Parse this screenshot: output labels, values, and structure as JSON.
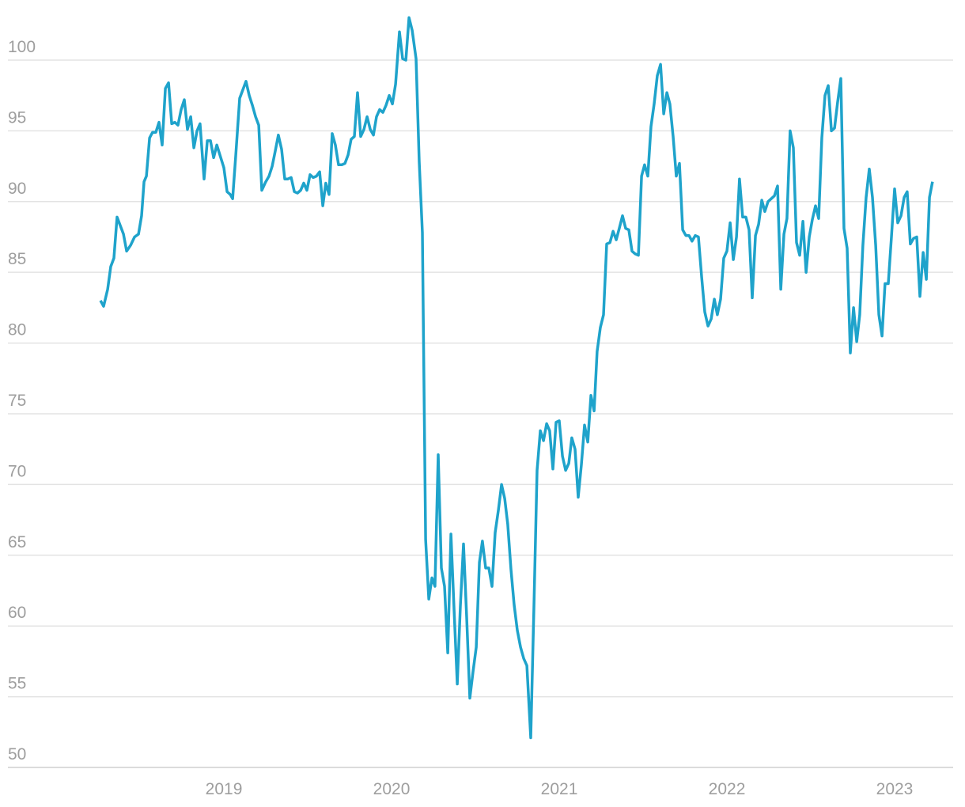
{
  "chart_data": {
    "type": "line",
    "x": [
      2018.264,
      2018.283,
      2018.307,
      2018.325,
      2018.344,
      2018.363,
      2018.401,
      2018.42,
      2018.443,
      2018.467,
      2018.491,
      2018.509,
      2018.524,
      2018.538,
      2018.557,
      2018.575,
      2018.594,
      2018.613,
      2018.632,
      2018.651,
      2018.67,
      2018.689,
      2018.708,
      2018.726,
      2018.745,
      2018.764,
      2018.783,
      2018.802,
      2018.821,
      2018.84,
      2018.858,
      2018.882,
      2018.901,
      2018.92,
      2018.939,
      2018.958,
      2018.976,
      2019.0,
      2019.019,
      2019.038,
      2019.052,
      2019.071,
      2019.094,
      2019.113,
      2019.132,
      2019.151,
      2019.17,
      2019.189,
      2019.208,
      2019.226,
      2019.25,
      2019.269,
      2019.288,
      2019.307,
      2019.325,
      2019.344,
      2019.363,
      2019.382,
      2019.401,
      2019.42,
      2019.439,
      2019.458,
      2019.476,
      2019.495,
      2019.514,
      2019.533,
      2019.552,
      2019.571,
      2019.59,
      2019.608,
      2019.627,
      2019.646,
      2019.665,
      2019.684,
      2019.703,
      2019.722,
      2019.741,
      2019.759,
      2019.778,
      2019.797,
      2019.816,
      2019.835,
      2019.854,
      2019.873,
      2019.892,
      2019.91,
      2019.929,
      2019.948,
      2019.967,
      2019.986,
      2020.005,
      2020.024,
      2020.047,
      2020.066,
      2020.085,
      2020.104,
      2020.123,
      2020.146,
      2020.165,
      2020.184,
      2020.203,
      2020.222,
      2020.241,
      2020.259,
      2020.278,
      2020.297,
      2020.316,
      2020.335,
      2020.354,
      2020.373,
      2020.392,
      2020.41,
      2020.429,
      2020.448,
      2020.467,
      2020.486,
      2020.505,
      2020.524,
      2020.542,
      2020.561,
      2020.58,
      2020.599,
      2020.618,
      2020.637,
      2020.656,
      2020.675,
      2020.693,
      2020.712,
      2020.731,
      2020.75,
      2020.769,
      2020.788,
      2020.807,
      2020.83,
      2020.849,
      2020.868,
      2020.887,
      2020.906,
      2020.925,
      2020.943,
      2020.962,
      2020.981,
      2021.0,
      2021.019,
      2021.038,
      2021.057,
      2021.075,
      2021.094,
      2021.113,
      2021.132,
      2021.151,
      2021.17,
      2021.189,
      2021.208,
      2021.226,
      2021.245,
      2021.264,
      2021.283,
      2021.302,
      2021.321,
      2021.34,
      2021.358,
      2021.377,
      2021.396,
      2021.415,
      2021.434,
      2021.453,
      2021.472,
      2021.491,
      2021.509,
      2021.528,
      2021.547,
      2021.566,
      2021.585,
      2021.604,
      2021.623,
      2021.642,
      2021.66,
      2021.679,
      2021.698,
      2021.717,
      2021.736,
      2021.755,
      2021.774,
      2021.792,
      2021.811,
      2021.83,
      2021.849,
      2021.868,
      2021.887,
      2021.906,
      2021.925,
      2021.943,
      2021.962,
      2021.981,
      2022.0,
      2022.019,
      2022.038,
      2022.057,
      2022.075,
      2022.094,
      2022.113,
      2022.132,
      2022.151,
      2022.17,
      2022.189,
      2022.208,
      2022.226,
      2022.245,
      2022.264,
      2022.283,
      2022.302,
      2022.321,
      2022.34,
      2022.358,
      2022.377,
      2022.396,
      2022.415,
      2022.434,
      2022.453,
      2022.472,
      2022.491,
      2022.509,
      2022.528,
      2022.547,
      2022.566,
      2022.585,
      2022.604,
      2022.623,
      2022.642,
      2022.66,
      2022.679,
      2022.698,
      2022.717,
      2022.736,
      2022.755,
      2022.774,
      2022.792,
      2022.811,
      2022.83,
      2022.849,
      2022.868,
      2022.887,
      2022.906,
      2022.925,
      2022.943,
      2022.962,
      2022.981,
      2023.0,
      2023.019,
      2023.038,
      2023.057,
      2023.075,
      2023.094,
      2023.113,
      2023.132,
      2023.151,
      2023.17,
      2023.189,
      2023.208,
      2023.226
    ],
    "series": [
      {
        "color": "#1fa3cb",
        "values": [
          83.0,
          82.6,
          83.8,
          85.4,
          86.0,
          88.9,
          87.7,
          86.5,
          86.9,
          87.5,
          87.7,
          89.0,
          91.4,
          91.8,
          94.5,
          94.9,
          94.9,
          95.6,
          94.0,
          98.0,
          98.4,
          95.5,
          95.6,
          95.4,
          96.5,
          97.2,
          95.1,
          96.0,
          93.8,
          95.0,
          95.5,
          91.6,
          94.3,
          94.3,
          93.1,
          94.0,
          93.3,
          92.4,
          90.7,
          90.5,
          90.2,
          93.3,
          97.3,
          97.9,
          98.5,
          97.5,
          96.8,
          96.0,
          95.4,
          90.8,
          91.4,
          91.8,
          92.5,
          93.6,
          94.7,
          93.7,
          91.6,
          91.6,
          91.7,
          90.7,
          90.6,
          90.8,
          91.3,
          90.8,
          91.9,
          91.7,
          91.8,
          92.1,
          89.7,
          91.3,
          90.5,
          94.8,
          94.0,
          92.6,
          92.6,
          92.7,
          93.3,
          94.4,
          94.6,
          97.7,
          94.6,
          95.1,
          96.0,
          95.1,
          94.7,
          96.0,
          96.5,
          96.3,
          96.8,
          97.5,
          96.9,
          98.3,
          102.0,
          100.1,
          100.0,
          103.0,
          102.1,
          100.1,
          92.8,
          87.8,
          66.1,
          61.9,
          63.4,
          62.8,
          72.1,
          64.1,
          62.8,
          58.1,
          66.5,
          61.1,
          55.9,
          61.4,
          65.8,
          60.6,
          54.9,
          56.8,
          58.5,
          64.5,
          66.0,
          64.1,
          64.1,
          62.8,
          66.6,
          68.2,
          70.0,
          69.0,
          67.2,
          64.0,
          61.5,
          59.7,
          58.5,
          57.7,
          57.2,
          52.1,
          61.3,
          71.0,
          73.8,
          73.1,
          74.3,
          73.8,
          71.1,
          74.4,
          74.5,
          72.0,
          71.0,
          71.5,
          73.3,
          72.5,
          69.1,
          71.4,
          74.2,
          73.0,
          76.3,
          75.2,
          79.4,
          81.1,
          82.0,
          87.0,
          87.1,
          87.9,
          87.3,
          88.1,
          89.0,
          88.1,
          88.0,
          86.5,
          86.3,
          86.2,
          91.8,
          92.6,
          91.8,
          95.3,
          96.9,
          98.9,
          99.7,
          96.2,
          97.7,
          96.9,
          94.6,
          91.8,
          92.7,
          88.0,
          87.6,
          87.6,
          87.2,
          87.6,
          87.5,
          84.7,
          82.2,
          81.2,
          81.7,
          83.1,
          82.0,
          83.1,
          86.0,
          86.5,
          88.5,
          85.9,
          87.5,
          91.6,
          88.9,
          88.9,
          88.0,
          83.2,
          87.6,
          88.4,
          90.1,
          89.3,
          90.0,
          90.2,
          90.4,
          91.1,
          83.8,
          87.7,
          88.8,
          95.0,
          93.8,
          87.1,
          86.2,
          88.6,
          85.0,
          87.5,
          88.7,
          89.7,
          88.8,
          94.5,
          97.5,
          98.2,
          95.0,
          95.2,
          97.0,
          98.7,
          88.1,
          86.7,
          79.3,
          82.5,
          80.1,
          82.0,
          86.9,
          90.3,
          92.3,
          90.3,
          86.9,
          82.0,
          80.5,
          84.2,
          84.2,
          87.5,
          90.9,
          88.5,
          89.0,
          90.3,
          90.7,
          87.0,
          87.4,
          87.5,
          83.3,
          86.4,
          84.5,
          90.3,
          91.4
        ]
      }
    ],
    "xlim": [
      2017.712,
      2023.349
    ],
    "xticks": [
      2019,
      2020,
      2021,
      2022,
      2023
    ],
    "ylim": [
      50,
      103.13
    ],
    "yticks": [
      50,
      55,
      60,
      65,
      70,
      75,
      80,
      85,
      90,
      95,
      100
    ],
    "grid": true
  }
}
